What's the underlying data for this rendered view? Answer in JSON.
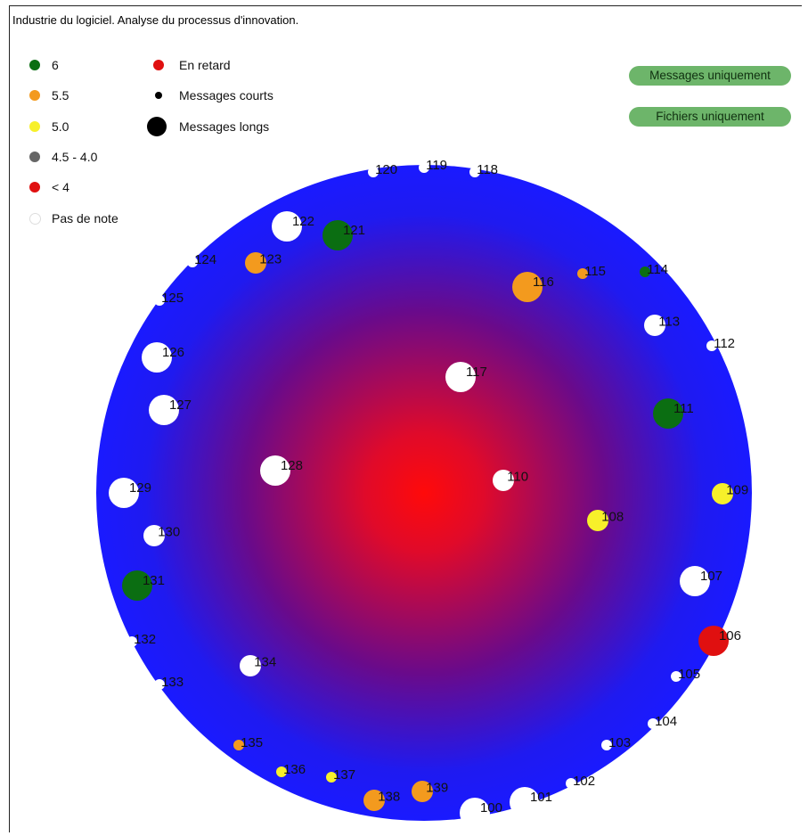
{
  "title": "Industrie du logiciel. Analyse du processus d'innovation.",
  "legend_grades": [
    {
      "label": "6",
      "color": "#0b6e12"
    },
    {
      "label": "5.5",
      "color": "#f39a1e"
    },
    {
      "label": "5.0",
      "color": "#f7f02a"
    },
    {
      "label": "4.5 - 4.0",
      "color": "#666666"
    },
    {
      "label": "< 4",
      "color": "#e01010"
    },
    {
      "label": "Pas de note",
      "color": "#ffffff"
    }
  ],
  "legend_status": [
    {
      "label": "En retard",
      "color": "#e01010",
      "kind": "late"
    },
    {
      "label": "Messages courts",
      "color": "#000000",
      "kind": "short"
    },
    {
      "label": "Messages longs",
      "color": "#000000",
      "kind": "long"
    }
  ],
  "buttons": {
    "messages_only": "Messages uniquement",
    "files_only": "Fichiers uniquement"
  },
  "colors": {
    "disk_center": "#ff1010",
    "disk_edge": "#1a1aff",
    "button_bg": "#6db56a"
  },
  "chart_data": {
    "type": "scatter",
    "title": "Industrie du logiciel. Analyse du processus d'innovation.",
    "note": "Nodes placed on a radial disk; size = message length, color = grade",
    "nodes": [
      {
        "id": "100",
        "grade": "Pas de note",
        "size": "long"
      },
      {
        "id": "101",
        "grade": "Pas de note",
        "size": "long"
      },
      {
        "id": "102",
        "grade": "Pas de note",
        "size": "short"
      },
      {
        "id": "103",
        "grade": "Pas de note",
        "size": "short"
      },
      {
        "id": "104",
        "grade": "Pas de note",
        "size": "short"
      },
      {
        "id": "105",
        "grade": "Pas de note",
        "size": "short"
      },
      {
        "id": "106",
        "grade": "< 4",
        "size": "long"
      },
      {
        "id": "107",
        "grade": "Pas de note",
        "size": "long"
      },
      {
        "id": "108",
        "grade": "5.0",
        "size": "medium"
      },
      {
        "id": "109",
        "grade": "5.0",
        "size": "medium"
      },
      {
        "id": "110",
        "grade": "Pas de note",
        "size": "medium"
      },
      {
        "id": "111",
        "grade": "6",
        "size": "long"
      },
      {
        "id": "112",
        "grade": "Pas de note",
        "size": "short"
      },
      {
        "id": "113",
        "grade": "Pas de note",
        "size": "medium"
      },
      {
        "id": "114",
        "grade": "6",
        "size": "short"
      },
      {
        "id": "115",
        "grade": "5.5",
        "size": "short"
      },
      {
        "id": "116",
        "grade": "5.5",
        "size": "long"
      },
      {
        "id": "117",
        "grade": "Pas de note",
        "size": "long"
      },
      {
        "id": "118",
        "grade": "Pas de note",
        "size": "short"
      },
      {
        "id": "119",
        "grade": "Pas de note",
        "size": "short"
      },
      {
        "id": "120",
        "grade": "Pas de note",
        "size": "short"
      },
      {
        "id": "121",
        "grade": "6",
        "size": "long"
      },
      {
        "id": "122",
        "grade": "Pas de note",
        "size": "long"
      },
      {
        "id": "123",
        "grade": "5.5",
        "size": "medium"
      },
      {
        "id": "124",
        "grade": "Pas de note",
        "size": "short"
      },
      {
        "id": "125",
        "grade": "Pas de note",
        "size": "short"
      },
      {
        "id": "126",
        "grade": "Pas de note",
        "size": "long"
      },
      {
        "id": "127",
        "grade": "Pas de note",
        "size": "long"
      },
      {
        "id": "128",
        "grade": "Pas de note",
        "size": "long"
      },
      {
        "id": "129",
        "grade": "Pas de note",
        "size": "long"
      },
      {
        "id": "130",
        "grade": "Pas de note",
        "size": "medium"
      },
      {
        "id": "131",
        "grade": "6",
        "size": "long"
      },
      {
        "id": "132",
        "grade": "Pas de note",
        "size": "short"
      },
      {
        "id": "133",
        "grade": "Pas de note",
        "size": "short"
      },
      {
        "id": "134",
        "grade": "Pas de note",
        "size": "medium"
      },
      {
        "id": "135",
        "grade": "5.5",
        "size": "short"
      },
      {
        "id": "136",
        "grade": "5.0",
        "size": "short"
      },
      {
        "id": "137",
        "grade": "5.0",
        "size": "short"
      },
      {
        "id": "138",
        "grade": "5.5",
        "size": "medium"
      },
      {
        "id": "139",
        "grade": "5.5",
        "size": "medium"
      }
    ]
  }
}
